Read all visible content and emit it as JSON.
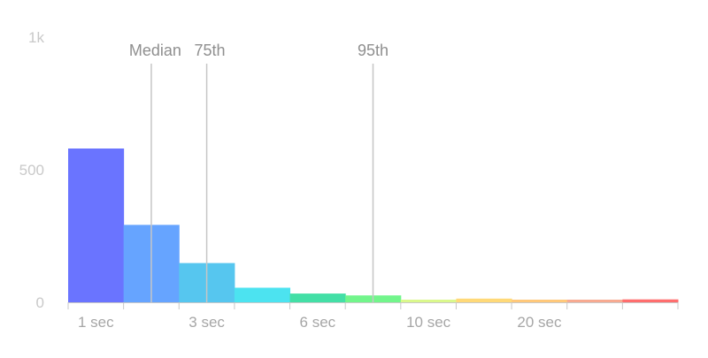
{
  "chart_data": {
    "type": "bar",
    "title": "",
    "xlabel": "",
    "ylabel": "",
    "ylim": [
      0,
      1000
    ],
    "grid": false,
    "y_ticks": [
      {
        "value": 0,
        "label": "0"
      },
      {
        "value": 500,
        "label": "500"
      },
      {
        "value": 1000,
        "label": "1k"
      }
    ],
    "bins": [
      {
        "value": 580,
        "color": "#6a74ff"
      },
      {
        "value": 292,
        "color": "#66a4ff"
      },
      {
        "value": 148,
        "color": "#56c6ef"
      },
      {
        "value": 55,
        "color": "#4ce3f0"
      },
      {
        "value": 33,
        "color": "#43dfa6"
      },
      {
        "value": 26,
        "color": "#72f58b"
      },
      {
        "value": 10,
        "color": "#daf88c"
      },
      {
        "value": 14,
        "color": "#ffd978"
      },
      {
        "value": 10,
        "color": "#ffc87a"
      },
      {
        "value": 10,
        "color": "#f7aa91"
      },
      {
        "value": 11,
        "color": "#ff6e6e"
      }
    ],
    "x_ticks": [
      {
        "position": 0.5,
        "label": "1 sec"
      },
      {
        "position": 2.5,
        "label": "3 sec"
      },
      {
        "position": 4.5,
        "label": "6 sec"
      },
      {
        "position": 6.5,
        "label": "10 sec"
      },
      {
        "position": 8.5,
        "label": "20 sec"
      }
    ],
    "markers": [
      {
        "position": 1.5,
        "label": "Median"
      },
      {
        "position": 2.5,
        "label": "75th"
      },
      {
        "position": 5.5,
        "label": "95th"
      }
    ]
  }
}
